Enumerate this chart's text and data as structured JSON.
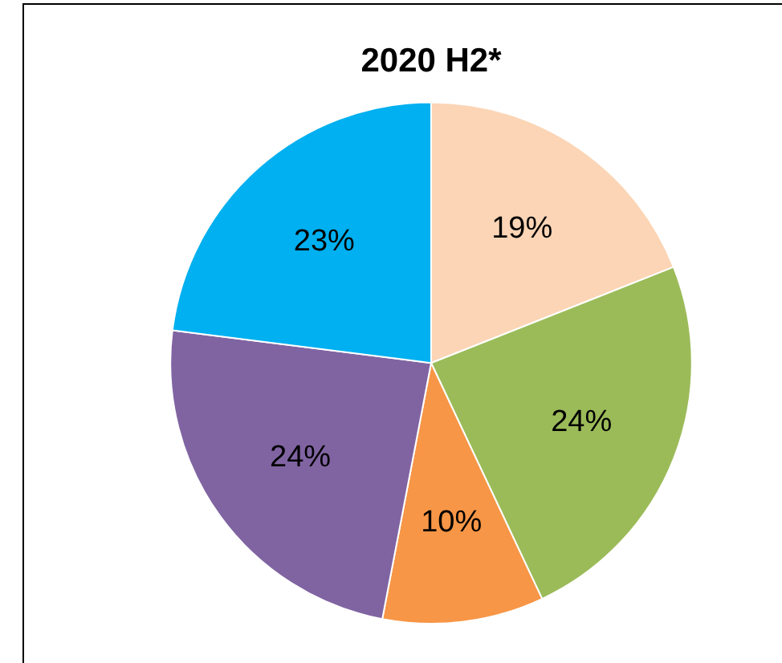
{
  "chart_data": {
    "type": "pie",
    "title": "2020 H2*",
    "categories": [
      null,
      null,
      null,
      null,
      null
    ],
    "values": [
      19,
      24,
      10,
      24,
      23
    ],
    "colors": [
      "#fbd5b5",
      "#9bbb59",
      "#f79646",
      "#8064a2",
      "#00b0f0"
    ],
    "value_labels": [
      "19%",
      "24%",
      "10%",
      "24%",
      "23%"
    ],
    "legend": false
  }
}
